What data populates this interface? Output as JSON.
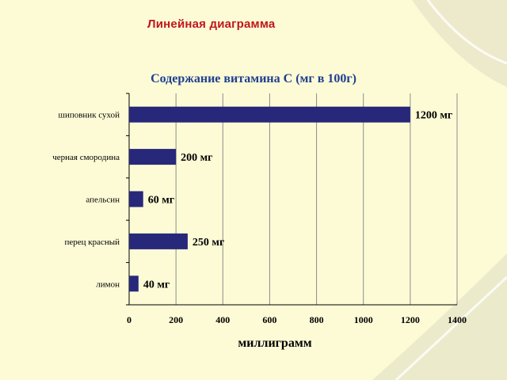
{
  "slide": {
    "title": "Линейная диаграмма"
  },
  "colors": {
    "background": "#fdfbd6",
    "title": "#c0161b",
    "chart_title": "#1f3f8f",
    "bar": "#27287a",
    "text": "#000000"
  },
  "chart_data": {
    "type": "bar",
    "orientation": "horizontal",
    "title": "Содержание витамина  С (мг в 100г)",
    "xlabel": "миллиграмм",
    "ylabel": "",
    "categories": [
      "шиповник сухой",
      "черная смородина",
      "апельсин",
      "перец красный",
      "лимон"
    ],
    "values": [
      1200,
      200,
      60,
      250,
      40
    ],
    "data_labels": [
      "1200 мг",
      "200 мг",
      "60 мг",
      "250 мг",
      "40 мг"
    ],
    "xlim": [
      0,
      1400
    ],
    "xticks": [
      0,
      200,
      400,
      600,
      800,
      1000,
      1200,
      1400
    ],
    "grid": true,
    "legend": "none"
  }
}
